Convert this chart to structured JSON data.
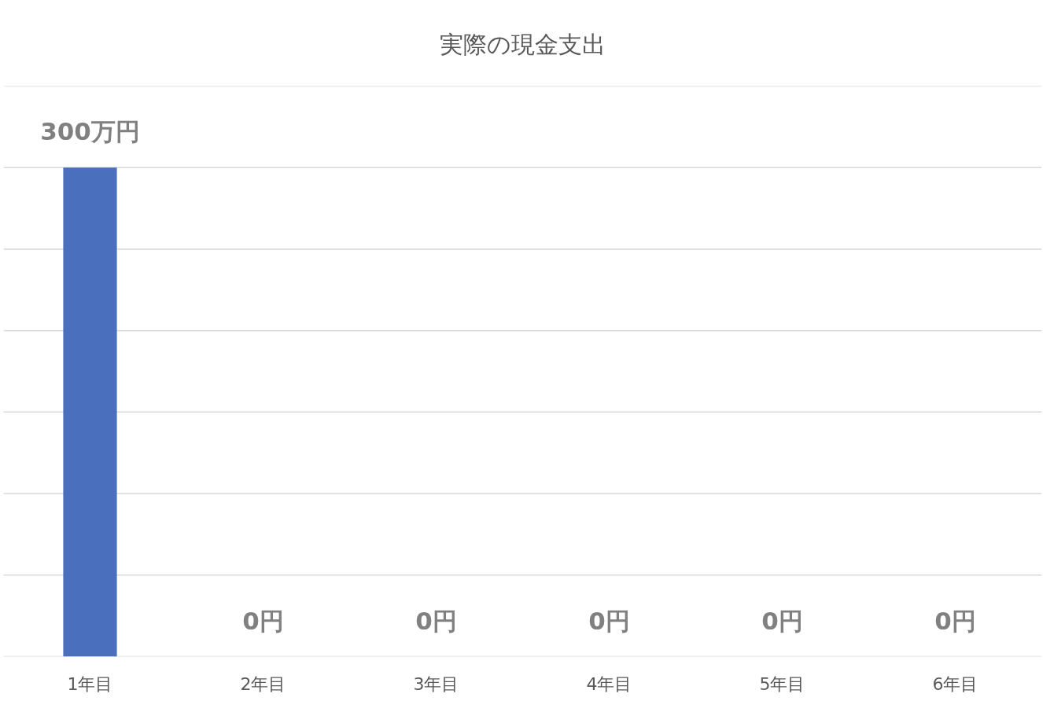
{
  "chart_data": {
    "type": "bar",
    "title": "実際の現金支出",
    "categories": [
      "1年目",
      "2年目",
      "3年目",
      "4年目",
      "5年目",
      "6年目"
    ],
    "values": [
      300,
      0,
      0,
      0,
      0,
      0
    ],
    "value_labels": [
      "300万円",
      "0円",
      "0円",
      "0円",
      "0円",
      "0円"
    ],
    "color": "#4a70bd",
    "ylim": [
      0,
      350
    ],
    "yticks": [
      {
        "value": 0,
        "label": null
      },
      {
        "value": 50,
        "label": null
      },
      {
        "value": 100,
        "label": null
      },
      {
        "value": 150,
        "label": null
      },
      {
        "value": 200,
        "label": null
      },
      {
        "value": 250,
        "label": null
      },
      {
        "value": 300,
        "label": null
      },
      {
        "value": 350,
        "label": null
      }
    ],
    "grid": "y",
    "tick_labels": "x"
  }
}
